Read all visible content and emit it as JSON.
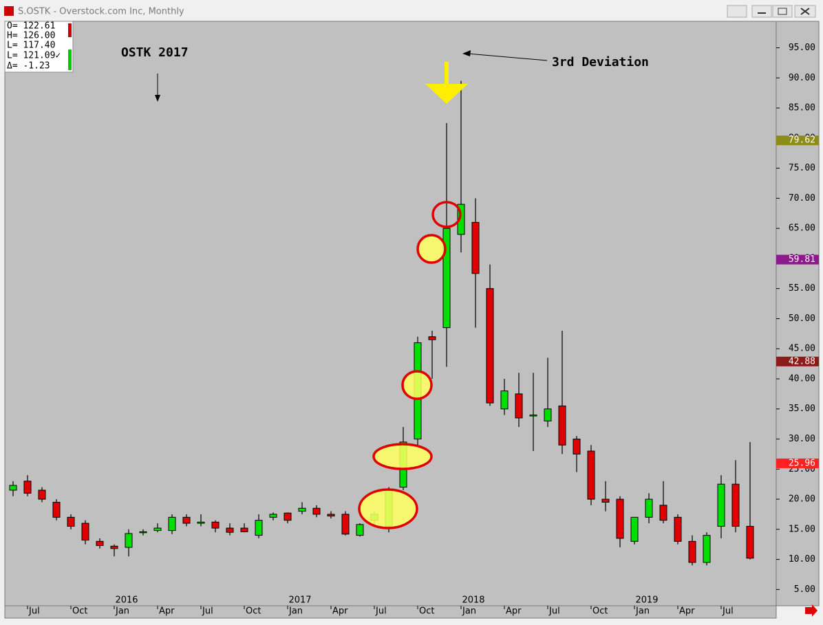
{
  "window_title": "S.OSTK - Overstock.com Inc, Monthly",
  "info_box": [
    "O= 122.61",
    "H= 126.00",
    "L= 117.40",
    "L= 121.09✓",
    "Δ=  -1.23"
  ],
  "chart_data": {
    "type": "candlestick",
    "annotations": [
      "OSTK 2017",
      "3rd Deviation"
    ],
    "categories": [
      null,
      "Jul",
      null,
      null,
      "Oct",
      null,
      null,
      "Jan",
      null,
      null,
      "Apr",
      null,
      null,
      "Jul",
      null,
      null,
      "Oct",
      null,
      null,
      "Jan",
      null,
      null,
      "Apr",
      null,
      null,
      "Jul",
      null,
      null,
      "Oct",
      null,
      null,
      "Jan",
      null,
      null,
      "Apr",
      null,
      null,
      "Jul",
      null,
      null,
      "Oct",
      null,
      null,
      "Jan",
      null,
      null,
      "Apr",
      null,
      null,
      "Jul",
      null,
      null
    ],
    "year_labels": [
      "2016",
      "2017",
      "2018",
      "2019"
    ],
    "open": [
      21.5,
      23,
      21.5,
      19.5,
      17,
      16,
      13,
      12.2,
      12,
      14.5,
      14.8,
      14.8,
      17,
      16,
      16.2,
      15.2,
      15.2,
      14,
      17,
      17.7,
      18,
      18.5,
      17.5,
      17.5,
      14,
      16.5,
      15.5,
      22,
      30,
      47,
      48.5,
      64,
      66,
      55,
      35,
      37.5,
      34,
      33,
      35.5,
      30,
      28,
      20,
      20,
      13,
      17,
      19,
      17,
      13,
      9.5,
      15.5,
      22.5,
      15.5
    ],
    "high": [
      23,
      24,
      22,
      20,
      17.5,
      16.5,
      13.5,
      12.5,
      15,
      15,
      16,
      17.5,
      17.5,
      17.5,
      16.5,
      16,
      16,
      17.5,
      17.8,
      17.8,
      19.5,
      19,
      18,
      18,
      16,
      18,
      22,
      32,
      47,
      48,
      82.5,
      89.5,
      70,
      59,
      40,
      41,
      41,
      43.5,
      48,
      30.5,
      29,
      23,
      20.5,
      17,
      21,
      23,
      17.5,
      14,
      14.5,
      24,
      26.5,
      29.5
    ],
    "low": [
      20.5,
      20.5,
      19.5,
      16.5,
      15,
      12.5,
      11.8,
      10.5,
      10.5,
      14,
      14.5,
      14.2,
      15.5,
      15.5,
      14.5,
      14,
      14.5,
      13.5,
      16.5,
      16,
      17.5,
      17,
      16.8,
      14,
      13.8,
      15.5,
      14.5,
      21.5,
      29,
      40,
      42,
      61,
      48.5,
      35.5,
      34,
      32,
      28,
      32,
      27.5,
      24.5,
      19,
      18,
      12,
      12.5,
      16,
      16,
      12.5,
      9,
      9,
      13.5,
      14.5,
      10
    ],
    "close": [
      22.3,
      21,
      20,
      17,
      15.5,
      13.2,
      12.3,
      11.8,
      14.3,
      14.6,
      15.2,
      17,
      16,
      16.2,
      15.2,
      14.5,
      14.6,
      16.5,
      17.5,
      16.5,
      18.5,
      17.5,
      17.2,
      14.2,
      15.8,
      17.5,
      21.5,
      29.5,
      46,
      46.5,
      65,
      69,
      57.5,
      36,
      38,
      33.5,
      34,
      35,
      29,
      27.5,
      20,
      19.5,
      13.5,
      17,
      20,
      16.5,
      13,
      9.5,
      14,
      22.5,
      15.5,
      10.2
    ],
    "up_color": "#00e000",
    "down_color": "#e00000",
    "ylim": [
      2.3,
      99.4
    ],
    "yticks": [
      {
        "value": 5,
        "label": "5.00"
      },
      {
        "value": 10,
        "label": "10.00"
      },
      {
        "value": 15,
        "label": "15.00"
      },
      {
        "value": 20,
        "label": "20.00"
      },
      {
        "value": 25,
        "label": "25.00"
      },
      {
        "value": 30,
        "label": "30.00"
      },
      {
        "value": 35,
        "label": "35.00"
      },
      {
        "value": 40,
        "label": "40.00"
      },
      {
        "value": 45,
        "label": "45.00"
      },
      {
        "value": 50,
        "label": "50.00"
      },
      {
        "value": 55,
        "label": "55.00"
      },
      {
        "value": 60,
        "label": "60.00"
      },
      {
        "value": 65,
        "label": "65.00"
      },
      {
        "value": 70,
        "label": "70.00"
      },
      {
        "value": 75,
        "label": "75.00"
      },
      {
        "value": 80,
        "label": "80.00"
      },
      {
        "value": 85,
        "label": "85.00"
      },
      {
        "value": 90,
        "label": "90.00"
      },
      {
        "value": 95,
        "label": "95.00"
      }
    ],
    "price_tags": [
      {
        "value": 79.62,
        "color": "#8c8c1a"
      },
      {
        "value": 59.81,
        "color": "#8c1a8c"
      },
      {
        "value": 42.88,
        "color": "#8c1a1a"
      },
      {
        "value": 25.96,
        "color": "#ff2020"
      }
    ]
  }
}
